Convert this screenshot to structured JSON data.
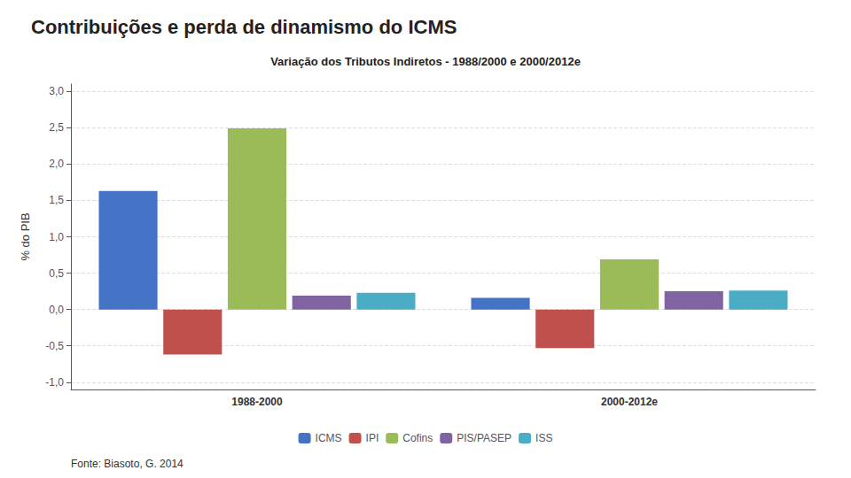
{
  "chart_data": {
    "type": "bar",
    "title": "Contribuições e perda de dinamismo do ICMS",
    "subtitle": "Variação dos Tributos Indiretos - 1988/2000 e 2000/2012e",
    "ylabel": "% do PIB",
    "annotations": [
      "Fonte: Biasoto, G. 2014"
    ],
    "categories": [
      "1988-2000",
      "2000-2012e"
    ],
    "series": [
      {
        "name": "ICMS",
        "color": "#4472C4",
        "values": [
          1.63,
          0.16
        ]
      },
      {
        "name": "IPI",
        "color": "#C0504D",
        "values": [
          -0.62,
          -0.53
        ]
      },
      {
        "name": "Cofins",
        "color": "#9BBB59",
        "values": [
          2.49,
          0.69
        ]
      },
      {
        "name": "PIS/PASEP",
        "color": "#8064A2",
        "values": [
          0.19,
          0.25
        ]
      },
      {
        "name": "ISS",
        "color": "#4BACC6",
        "values": [
          0.23,
          0.26
        ]
      }
    ],
    "ylim": [
      -1.1,
      3.1
    ],
    "yticks": [
      {
        "value": -1.0,
        "label": "-1,0"
      },
      {
        "value": -0.5,
        "label": "-0,5"
      },
      {
        "value": 0.0,
        "label": "0,0"
      },
      {
        "value": 0.5,
        "label": "0,5"
      },
      {
        "value": 1.0,
        "label": "1,0"
      },
      {
        "value": 1.5,
        "label": "1,5"
      },
      {
        "value": 2.0,
        "label": "2,0"
      },
      {
        "value": 2.5,
        "label": "2,5"
      },
      {
        "value": 3.0,
        "label": "3,0"
      }
    ],
    "grid": true,
    "legend": "bottom"
  }
}
